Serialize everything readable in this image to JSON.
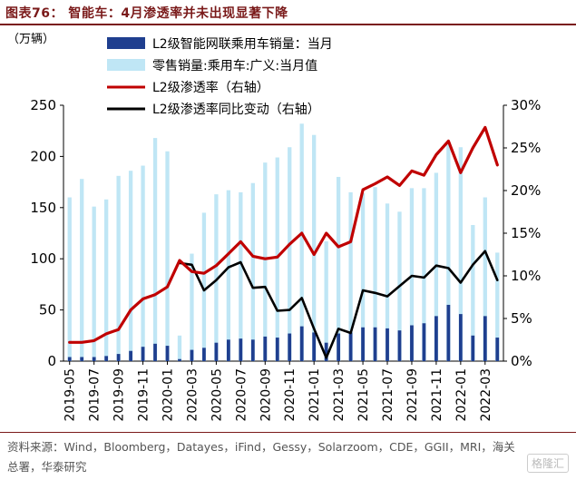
{
  "title": "图表76： 智能车：4月渗透率并未出现显著下降",
  "source": "资料来源：Wind，Bloomberg，Datayes，iFind，Gessy，Solarzoom，CDE，GGII，MRI，海关总署，华泰研究",
  "watermark": "格隆汇",
  "chart_data": {
    "type": "bar+line",
    "ylabel_left": "（万辆）",
    "ylim_left": [
      0,
      250
    ],
    "yticks_left": [
      "0",
      "50",
      "100",
      "150",
      "200",
      "250"
    ],
    "ylim_right": [
      0,
      30
    ],
    "yticks_right": [
      "0%",
      "5%",
      "10%",
      "15%",
      "20%",
      "25%",
      "30%"
    ],
    "x": [
      "2019-05",
      "2019-06",
      "2019-07",
      "2019-08",
      "2019-09",
      "2019-10",
      "2019-11",
      "2019-12",
      "2020-01",
      "2020-02",
      "2020-03",
      "2020-04",
      "2020-05",
      "2020-06",
      "2020-07",
      "2020-08",
      "2020-09",
      "2020-10",
      "2020-11",
      "2020-12",
      "2021-01",
      "2021-02",
      "2021-03",
      "2021-04",
      "2021-05",
      "2021-06",
      "2021-07",
      "2021-08",
      "2021-09",
      "2021-10",
      "2021-11",
      "2021-12",
      "2022-01",
      "2022-02",
      "2022-03",
      "2022-04"
    ],
    "xtick_labels": [
      "2019-05",
      "2019-07",
      "2019-09",
      "2019-11",
      "2020-01",
      "2020-03",
      "2020-05",
      "2020-07",
      "2020-09",
      "2020-11",
      "2021-01",
      "2021-03",
      "2021-05",
      "2021-07",
      "2021-09",
      "2021-11",
      "2022-01",
      "2022-03"
    ],
    "legend": [
      {
        "label": "L2级智能网联乘用车销量：当月",
        "kind": "bar",
        "color": "#1f3f8f"
      },
      {
        "label": "零售销量:乘用车:广义:当月值",
        "kind": "bar",
        "color": "#bfe6f5"
      },
      {
        "label": "L2级渗透率（右轴）",
        "kind": "line",
        "color": "#c00000"
      },
      {
        "label": "L2级渗透率同比变动（右轴）",
        "kind": "line",
        "color": "#000000"
      }
    ],
    "series": [
      {
        "name": "L2级智能网联乘用车销量：当月",
        "axis": "left",
        "values": [
          4,
          4,
          4,
          5,
          7,
          10,
          14,
          17,
          15,
          2,
          11,
          13,
          18,
          21,
          22,
          21,
          24,
          23,
          27,
          34,
          28,
          18,
          27,
          28,
          33,
          33,
          32,
          30,
          35,
          37,
          44,
          55,
          46,
          25,
          44,
          23
        ]
      },
      {
        "name": "零售销量:乘用车:广义:当月值",
        "axis": "left",
        "values": [
          160,
          178,
          151,
          158,
          181,
          186,
          191,
          218,
          205,
          25,
          105,
          145,
          163,
          167,
          165,
          174,
          194,
          199,
          209,
          232,
          221,
          117,
          180,
          165,
          164,
          170,
          154,
          146,
          169,
          169,
          184,
          214,
          209,
          133,
          160,
          106
        ]
      },
      {
        "name": "L2级渗透率（右轴）",
        "axis": "right",
        "values": [
          2.2,
          2.2,
          2.4,
          3.2,
          3.7,
          6.0,
          7.3,
          7.8,
          8.7,
          11.8,
          10.5,
          10.3,
          11.2,
          12.6,
          14.0,
          12.3,
          12.0,
          12.2,
          13.7,
          15.0,
          12.5,
          15.0,
          13.4,
          14.0,
          20.1,
          20.8,
          21.6,
          20.6,
          22.3,
          21.8,
          24.2,
          25.8,
          22.1,
          25.0,
          27.4,
          23.0
        ]
      },
      {
        "name": "L2级渗透率同比变动（右轴）",
        "axis": "right",
        "values": [
          null,
          null,
          null,
          null,
          null,
          null,
          null,
          null,
          null,
          11.5,
          11.3,
          8.3,
          9.5,
          11.0,
          11.6,
          8.6,
          8.7,
          5.9,
          6.0,
          7.4,
          3.8,
          0.4,
          3.8,
          3.3,
          8.3,
          8.0,
          7.6,
          8.8,
          10.0,
          9.8,
          11.2,
          10.9,
          9.2,
          11.3,
          12.9,
          9.5
        ]
      }
    ]
  }
}
